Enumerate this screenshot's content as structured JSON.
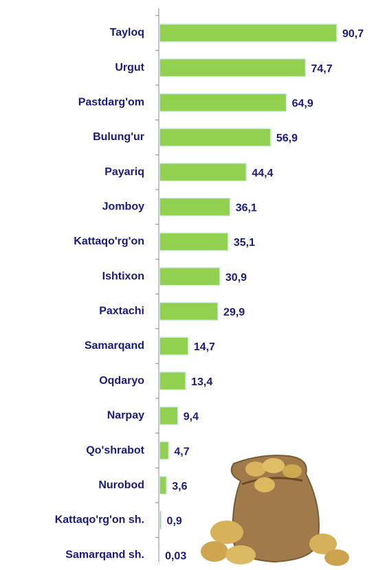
{
  "chart_data": {
    "type": "hbar",
    "categories": [
      "Tayloq",
      "Urgut",
      "Pastdarg'om",
      "Bulung'ur",
      "Payariq",
      "Jomboy",
      "Kattaqo'rg'on",
      "Ishtixon",
      "Paxtachi",
      "Samarqand",
      "Oqdaryo",
      "Narpay",
      "Qo'shrabot",
      "Nurobod",
      "Kattaqo'rg'on sh.",
      "Samarqand sh."
    ],
    "values": [
      90.7,
      74.7,
      64.9,
      56.9,
      44.4,
      36.1,
      35.1,
      30.9,
      29.9,
      14.7,
      13.4,
      9.4,
      4.7,
      3.6,
      0.9,
      0.03
    ],
    "value_labels": [
      "90,7",
      "74,7",
      "64,9",
      "56,9",
      "44,4",
      "36,1",
      "35,1",
      "30,9",
      "29,9",
      "14,7",
      "13,4",
      "9,4",
      "4,7",
      "3,6",
      "0,9",
      "0,03"
    ],
    "color": "#92d050"
  }
}
